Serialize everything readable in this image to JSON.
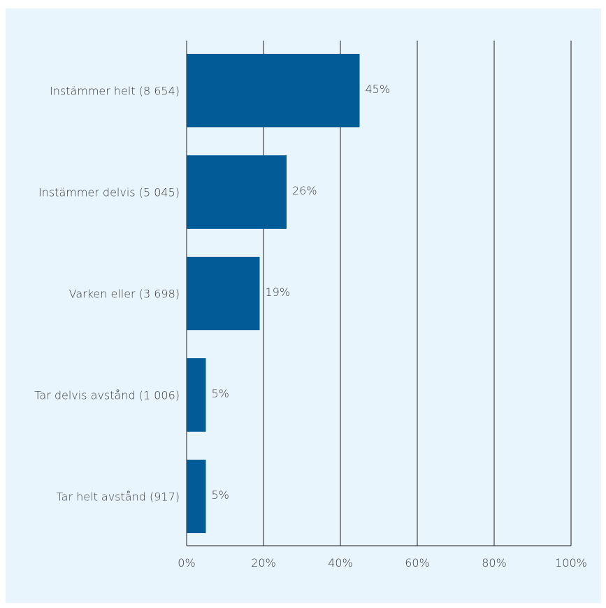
{
  "chart_data": {
    "type": "bar",
    "orientation": "horizontal",
    "categories": [
      "Instämmer helt (8 654)",
      "Instämmer delvis (5 045)",
      "Varken eller (3 698)",
      "Tar delvis avstånd (1 006)",
      "Tar helt avstånd (917)"
    ],
    "values": [
      45,
      26,
      19,
      5,
      5
    ],
    "value_labels": [
      "45%",
      "26%",
      "19%",
      "5%",
      "5%"
    ],
    "xlim": [
      0,
      100
    ],
    "xticks": [
      0,
      20,
      40,
      60,
      80,
      100
    ],
    "xtick_labels": [
      "0%",
      "20%",
      "40%",
      "60%",
      "80%",
      "100%"
    ],
    "title": "",
    "xlabel": "",
    "ylabel": "",
    "grid": "vertical",
    "legend": "none",
    "colors": {
      "bar": "#005b96",
      "grid": "#1a1a1a",
      "background": "#e9f5fc",
      "text": "#3a3a3a"
    }
  }
}
